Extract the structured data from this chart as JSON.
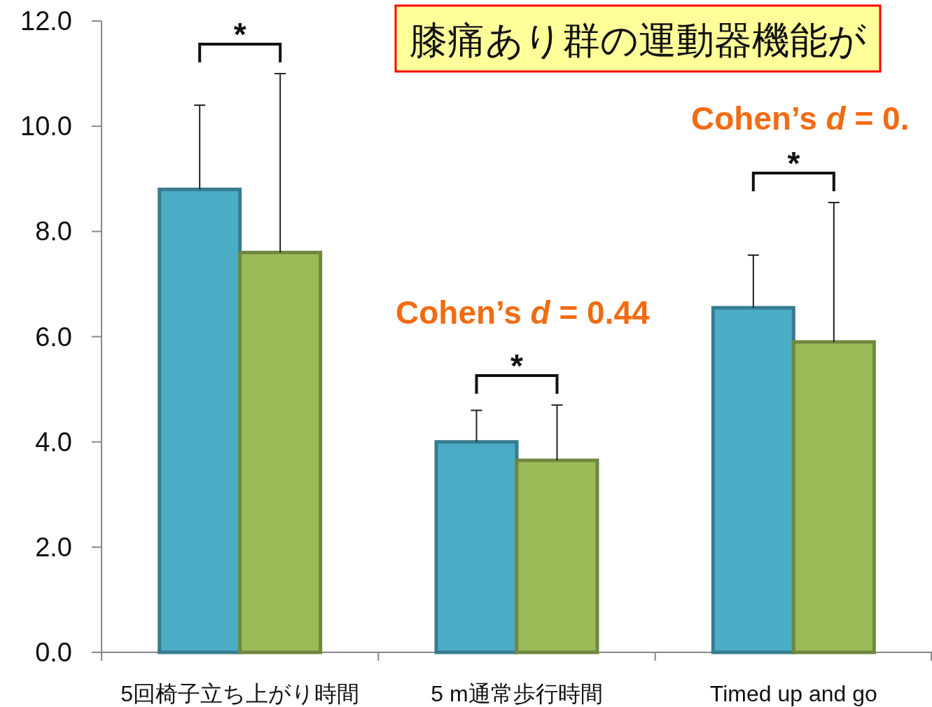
{
  "chart_data": {
    "type": "bar",
    "title": "膝痛あり群の運動器機能が",
    "categories": [
      "5回椅子立ち上がり時間",
      "5 m通常歩行時間",
      "Timed up and go"
    ],
    "series": [
      {
        "color": "#4bacc6",
        "values": [
          8.8,
          4.0,
          6.55
        ],
        "errors": [
          1.6,
          0.6,
          1.0
        ]
      },
      {
        "color": "#9bbb59",
        "values": [
          7.6,
          3.65,
          5.9
        ],
        "errors": [
          3.4,
          1.05,
          2.65
        ]
      }
    ],
    "ylim": [
      0,
      12
    ],
    "yticks": [
      {
        "value": 0,
        "label": "0.0"
      },
      {
        "value": 2,
        "label": "2.0"
      },
      {
        "value": 4,
        "label": "4.0"
      },
      {
        "value": 6,
        "label": "6.0"
      },
      {
        "value": 8,
        "label": "8.0"
      },
      {
        "value": 10,
        "label": "10.0"
      },
      {
        "value": 12,
        "label": "12.0"
      }
    ],
    "grid": false,
    "annotations": [
      "*",
      "*",
      "*",
      "Cohen’s *d* = 0.44",
      "Cohen’s *d* = 0."
    ]
  }
}
